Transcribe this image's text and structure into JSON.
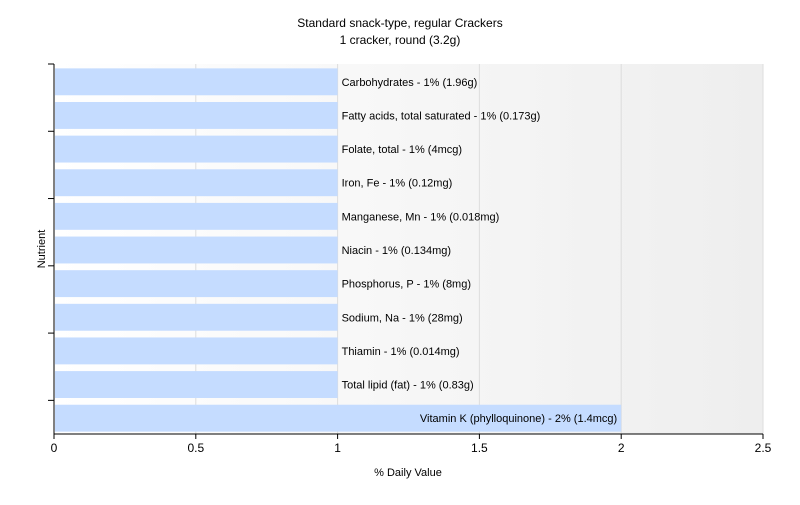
{
  "chart_data": {
    "type": "bar",
    "orientation": "horizontal",
    "title": "Standard snack-type, regular Crackers",
    "subtitle": "1 cracker, round (3.2g)",
    "xlabel": "% Daily Value",
    "ylabel": "Nutrient",
    "xlim": [
      0,
      2.5
    ],
    "x_ticks": [
      0,
      0.5,
      1,
      1.5,
      2,
      2.5
    ],
    "x_tick_labels": [
      "0",
      "0.5",
      "1",
      "1.5",
      "2",
      "2.5"
    ],
    "grid": true,
    "bar_color": "#c5dcff",
    "categories": [
      "Carbohydrates",
      "Fatty acids, total saturated",
      "Folate, total",
      "Iron, Fe",
      "Manganese, Mn",
      "Niacin",
      "Phosphorus, P",
      "Sodium, Na",
      "Thiamin",
      "Total lipid (fat)",
      "Vitamin K (phylloquinone)"
    ],
    "values": [
      1,
      1,
      1,
      1,
      1,
      1,
      1,
      1,
      1,
      1,
      2
    ],
    "data_labels": [
      "Carbohydrates - 1% (1.96g)",
      "Fatty acids, total saturated - 1% (0.173g)",
      "Folate, total - 1% (4mcg)",
      "Iron, Fe - 1% (0.12mg)",
      "Manganese, Mn - 1% (0.018mg)",
      "Niacin - 1% (0.134mg)",
      "Phosphorus, P - 1% (8mg)",
      "Sodium, Na - 1% (28mg)",
      "Thiamin - 1% (0.014mg)",
      "Total lipid (fat) - 1% (0.83g)",
      "Vitamin K (phylloquinone) - 2% (1.4mcg)"
    ]
  }
}
